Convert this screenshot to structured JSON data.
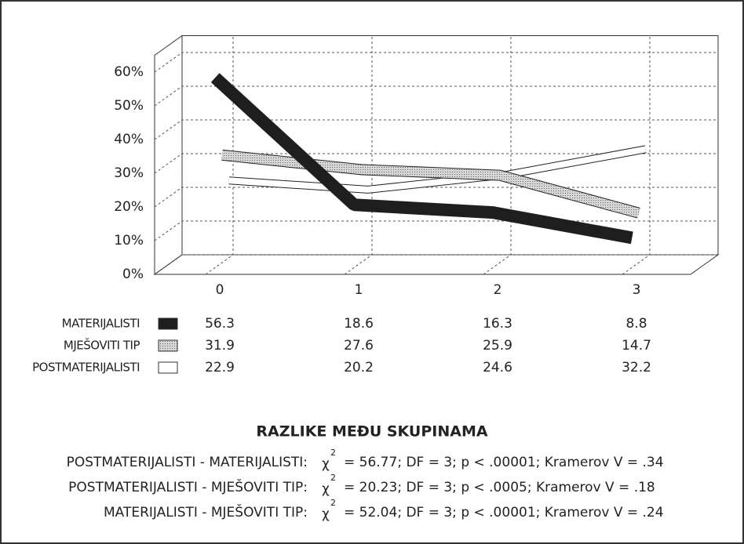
{
  "chart_data": {
    "type": "line",
    "categories": [
      "0",
      "1",
      "2",
      "3"
    ],
    "series": [
      {
        "name": "MATERIJALISTI",
        "color": "#1e1e1e",
        "values": [
          56.3,
          18.6,
          16.3,
          8.8
        ]
      },
      {
        "name": "MJEŠOVITI TIP",
        "color": "#bdbdbd",
        "values": [
          31.9,
          27.6,
          25.9,
          14.7
        ]
      },
      {
        "name": "POSTMATERIJALISTI",
        "color": "#ffffff",
        "values": [
          22.9,
          20.2,
          24.6,
          32.2
        ]
      }
    ],
    "ylim": [
      0,
      65
    ],
    "yticks": [
      {
        "value": 0,
        "label": "0%"
      },
      {
        "value": 10,
        "label": "10%"
      },
      {
        "value": 20,
        "label": "20%"
      },
      {
        "value": 30,
        "label": "30%"
      },
      {
        "value": 40,
        "label": "40%"
      },
      {
        "value": 50,
        "label": "50%"
      },
      {
        "value": 60,
        "label": "60%"
      }
    ],
    "grid": true,
    "stats_title": "RAZLIKE MEĐU SKUPINAMA",
    "stats": [
      {
        "pair": "POSTMATERIJALISTI - MATERIJALISTI:",
        "symbol": "χ",
        "sup": "2",
        "text": "= 56.77; DF = 3; p < .00001; Kramerov V = .34"
      },
      {
        "pair": "POSTMATERIJALISTI - MJEŠOVITI TIP:",
        "symbol": "χ",
        "sup": "2",
        "text": "= 20.23; DF = 3; p < .0005; Kramerov V = .18"
      },
      {
        "pair": "MATERIJALISTI - MJEŠOVITI TIP:",
        "symbol": "χ",
        "sup": "2",
        "text": "= 52.04; DF = 3; p < .00001; Kramerov V = .24"
      }
    ]
  }
}
